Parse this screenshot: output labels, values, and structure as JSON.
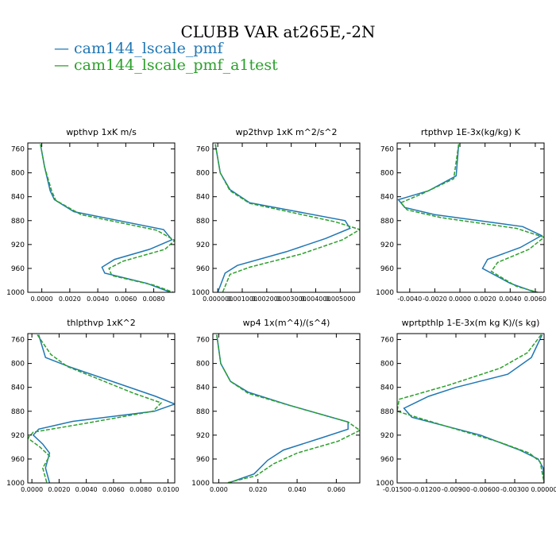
{
  "title": "CLUBB VAR at265E,-2N",
  "legend": [
    {
      "label": "cam144_lscale_pmf",
      "color": "#1f77b4",
      "style": "solid"
    },
    {
      "label": "cam144_lscale_pmf_a1test",
      "color": "#2ca02c",
      "style": "dashed"
    }
  ],
  "chart_data": [
    {
      "type": "line",
      "title": "wpthvp  1xK m/s",
      "xlim": [
        -0.001,
        0.0095
      ],
      "ylim": [
        1000,
        750
      ],
      "xticks": [
        0.0,
        0.002,
        0.004,
        0.006,
        0.008
      ],
      "xtick_labels": [
        "0.0000",
        "0.0020",
        "0.0040",
        "0.0060",
        "0.0080"
      ],
      "yticks": [
        760,
        800,
        840,
        880,
        920,
        960,
        1000
      ],
      "series": [
        {
          "name": "cam144_lscale_pmf",
          "points": [
            [
              -0.0001,
              752
            ],
            [
              0.0002,
              790
            ],
            [
              0.0006,
              830
            ],
            [
              0.0009,
              845
            ],
            [
              0.0023,
              865
            ],
            [
              0.0087,
              895
            ],
            [
              0.0093,
              912
            ],
            [
              0.0077,
              928
            ],
            [
              0.0052,
              945
            ],
            [
              0.0043,
              958
            ],
            [
              0.0045,
              968
            ],
            [
              0.0075,
              985
            ],
            [
              0.0092,
              1000
            ]
          ]
        },
        {
          "name": "cam144_lscale_pmf_a1test",
          "points": [
            [
              -0.0001,
              752
            ],
            [
              0.0002,
              790
            ],
            [
              0.0007,
              830
            ],
            [
              0.001,
              846
            ],
            [
              0.0028,
              870
            ],
            [
              0.0082,
              896
            ],
            [
              0.0095,
              913
            ],
            [
              0.0088,
              928
            ],
            [
              0.0058,
              948
            ],
            [
              0.0048,
              960
            ],
            [
              0.005,
              972
            ],
            [
              0.008,
              988
            ],
            [
              0.0094,
              1000
            ]
          ]
        }
      ]
    },
    {
      "type": "line",
      "title": "wp2thvp  1xK m^2/s^2",
      "xlim": [
        -0.0002,
        0.0058
      ],
      "ylim": [
        1000,
        750
      ],
      "xticks": [
        0.0,
        0.001,
        0.002,
        0.003,
        0.004,
        0.005
      ],
      "xtick_labels": [
        "0.000000",
        "0.001000",
        "0.002000",
        "0.003000",
        "0.004000",
        "0.005000"
      ],
      "yticks": [
        760,
        800,
        840,
        880,
        920,
        960,
        1000
      ],
      "series": [
        {
          "name": "cam144_lscale_pmf",
          "points": [
            [
              -0.0001,
              752
            ],
            [
              0.0001,
              800
            ],
            [
              0.0005,
              828
            ],
            [
              0.0013,
              850
            ],
            [
              0.0052,
              880
            ],
            [
              0.0054,
              893
            ],
            [
              0.0044,
              910
            ],
            [
              0.0028,
              932
            ],
            [
              0.0008,
              955
            ],
            [
              0.0003,
              968
            ],
            [
              0.0,
              1000
            ]
          ]
        },
        {
          "name": "cam144_lscale_pmf_a1test",
          "points": [
            [
              -0.0001,
              752
            ],
            [
              0.0001,
              800
            ],
            [
              0.0005,
              830
            ],
            [
              0.0013,
              851
            ],
            [
              0.0048,
              882
            ],
            [
              0.0058,
              895
            ],
            [
              0.0051,
              912
            ],
            [
              0.0034,
              936
            ],
            [
              0.0013,
              958
            ],
            [
              0.0005,
              970
            ],
            [
              0.0002,
              1000
            ]
          ]
        }
      ]
    },
    {
      "type": "line",
      "title": "rtpthvp  1E-3x(kg/kg) K",
      "xlim": [
        -0.005,
        0.0067
      ],
      "ylim": [
        1000,
        750
      ],
      "xticks": [
        -0.004,
        -0.002,
        0.0,
        0.002,
        0.004,
        0.006
      ],
      "xtick_labels": [
        "-0.0040",
        "-0.0020",
        "0.0000",
        "0.0020",
        "0.0040",
        "0.0060"
      ],
      "yticks": [
        760,
        800,
        840,
        880,
        920,
        960,
        1000
      ],
      "series": [
        {
          "name": "cam144_lscale_pmf",
          "points": [
            [
              -0.0001,
              752
            ],
            [
              -0.0003,
              805
            ],
            [
              -0.0025,
              830
            ],
            [
              -0.0049,
              845
            ],
            [
              -0.0044,
              858
            ],
            [
              -0.002,
              870
            ],
            [
              0.005,
              890
            ],
            [
              0.0065,
              905
            ],
            [
              0.0048,
              925
            ],
            [
              0.0022,
              945
            ],
            [
              0.0018,
              960
            ],
            [
              0.004,
              985
            ],
            [
              0.006,
              1000
            ]
          ]
        },
        {
          "name": "cam144_lscale_pmf_a1test",
          "points": [
            [
              -0.0001,
              752
            ],
            [
              -0.0005,
              810
            ],
            [
              -0.003,
              835
            ],
            [
              -0.0047,
              850
            ],
            [
              -0.0042,
              862
            ],
            [
              -0.0015,
              875
            ],
            [
              0.0045,
              893
            ],
            [
              0.0067,
              908
            ],
            [
              0.0055,
              928
            ],
            [
              0.003,
              950
            ],
            [
              0.0025,
              965
            ],
            [
              0.0045,
              990
            ],
            [
              0.0062,
              1000
            ]
          ]
        }
      ]
    },
    {
      "type": "line",
      "title": "thlpthvp  1xK^2",
      "xlim": [
        -0.0003,
        0.0105
      ],
      "ylim": [
        1000,
        750
      ],
      "xticks": [
        0.0,
        0.002,
        0.004,
        0.006,
        0.008,
        0.01
      ],
      "xtick_labels": [
        "0.0000",
        "0.0020",
        "0.0040",
        "0.0060",
        "0.0080",
        "0.0100"
      ],
      "yticks": [
        760,
        800,
        840,
        880,
        920,
        960,
        1000
      ],
      "series": [
        {
          "name": "cam144_lscale_pmf",
          "points": [
            [
              0.0005,
              752
            ],
            [
              0.001,
              790
            ],
            [
              0.0027,
              805
            ],
            [
              0.0091,
              855
            ],
            [
              0.0105,
              868
            ],
            [
              0.009,
              880
            ],
            [
              0.003,
              897
            ],
            [
              0.0005,
              910
            ],
            [
              0.0001,
              920
            ],
            [
              0.0008,
              935
            ],
            [
              0.0013,
              950
            ],
            [
              0.001,
              975
            ],
            [
              0.0013,
              1000
            ]
          ]
        },
        {
          "name": "cam144_lscale_pmf_a1test",
          "points": [
            [
              0.0004,
              752
            ],
            [
              0.0014,
              785
            ],
            [
              0.0026,
              805
            ],
            [
              0.0075,
              850
            ],
            [
              0.0095,
              866
            ],
            [
              0.0089,
              880
            ],
            [
              0.004,
              900
            ],
            [
              0.0001,
              915
            ],
            [
              -0.0003,
              925
            ],
            [
              0.0006,
              940
            ],
            [
              0.0013,
              955
            ],
            [
              0.0008,
              975
            ],
            [
              0.0011,
              1000
            ]
          ]
        }
      ]
    },
    {
      "type": "line",
      "title": "wp4  1x(m^4)/(s^4)",
      "xlim": [
        -0.003,
        0.072
      ],
      "ylim": [
        1000,
        750
      ],
      "xticks": [
        0.0,
        0.02,
        0.04,
        0.06
      ],
      "xtick_labels": [
        "0.000",
        "0.020",
        "0.040",
        "0.060"
      ],
      "yticks": [
        760,
        800,
        840,
        880,
        920,
        960,
        1000
      ],
      "series": [
        {
          "name": "cam144_lscale_pmf",
          "points": [
            [
              -0.001,
              752
            ],
            [
              0.001,
              800
            ],
            [
              0.006,
              830
            ],
            [
              0.015,
              848
            ],
            [
              0.036,
              870
            ],
            [
              0.066,
              898
            ],
            [
              0.066,
              910
            ],
            [
              0.052,
              925
            ],
            [
              0.033,
              945
            ],
            [
              0.025,
              962
            ],
            [
              0.018,
              985
            ],
            [
              0.005,
              1000
            ]
          ]
        },
        {
          "name": "cam144_lscale_pmf_a1test",
          "points": [
            [
              -0.001,
              752
            ],
            [
              0.001,
              800
            ],
            [
              0.006,
              830
            ],
            [
              0.015,
              850
            ],
            [
              0.038,
              872
            ],
            [
              0.066,
              898
            ],
            [
              0.072,
              912
            ],
            [
              0.061,
              930
            ],
            [
              0.04,
              950
            ],
            [
              0.028,
              968
            ],
            [
              0.019,
              988
            ],
            [
              0.004,
              1000
            ]
          ]
        }
      ]
    },
    {
      "type": "line",
      "title": "wprtpthlp  1-E-3x(m kg K)/(s kg)",
      "xlim": [
        -0.015,
        0.0
      ],
      "ylim": [
        1000,
        750
      ],
      "xticks": [
        -0.015,
        -0.012,
        -0.009,
        -0.006,
        -0.003,
        0.0
      ],
      "xtick_labels": [
        "-0.01500",
        "-0.01200",
        "-0.00900",
        "-0.00600",
        "-0.00300",
        "0.00000"
      ],
      "yticks": [
        760,
        800,
        840,
        880,
        920,
        960,
        1000
      ],
      "series": [
        {
          "name": "cam144_lscale_pmf",
          "points": [
            [
              -0.0002,
              752
            ],
            [
              -0.0013,
              790
            ],
            [
              -0.0037,
              818
            ],
            [
              -0.009,
              840
            ],
            [
              -0.0118,
              855
            ],
            [
              -0.0143,
              875
            ],
            [
              -0.0135,
              890
            ],
            [
              -0.0065,
              920
            ],
            [
              -0.0025,
              945
            ],
            [
              -0.0006,
              960
            ],
            [
              -0.0001,
              975
            ],
            [
              0.0,
              1000
            ]
          ]
        },
        {
          "name": "cam144_lscale_pmf_a1test",
          "points": [
            [
              -0.0003,
              752
            ],
            [
              -0.0017,
              782
            ],
            [
              -0.0045,
              808
            ],
            [
              -0.0097,
              836
            ],
            [
              -0.0148,
              860
            ],
            [
              -0.015,
              880
            ],
            [
              -0.01,
              905
            ],
            [
              -0.0045,
              932
            ],
            [
              -0.0015,
              950
            ],
            [
              -0.0004,
              965
            ],
            [
              0.0,
              1000
            ]
          ]
        }
      ]
    }
  ]
}
